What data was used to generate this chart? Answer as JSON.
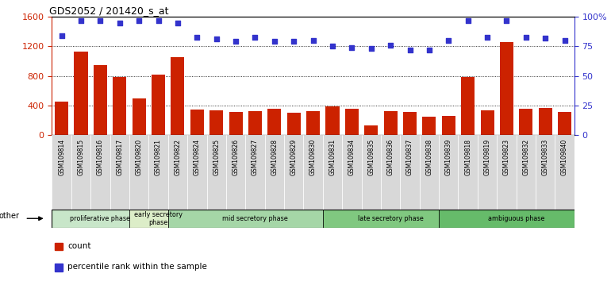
{
  "title": "GDS2052 / 201420_s_at",
  "samples": [
    "GSM109814",
    "GSM109815",
    "GSM109816",
    "GSM109817",
    "GSM109820",
    "GSM109821",
    "GSM109822",
    "GSM109824",
    "GSM109825",
    "GSM109826",
    "GSM109827",
    "GSM109828",
    "GSM109829",
    "GSM109830",
    "GSM109831",
    "GSM109834",
    "GSM109835",
    "GSM109836",
    "GSM109837",
    "GSM109838",
    "GSM109839",
    "GSM109818",
    "GSM109819",
    "GSM109823",
    "GSM109832",
    "GSM109833",
    "GSM109840"
  ],
  "counts": [
    450,
    1130,
    950,
    790,
    490,
    820,
    1050,
    340,
    330,
    310,
    320,
    350,
    300,
    320,
    390,
    350,
    130,
    320,
    310,
    250,
    260,
    790,
    330,
    1260,
    350,
    360,
    310
  ],
  "percentiles": [
    84,
    97,
    97,
    95,
    97,
    97,
    95,
    83,
    81,
    79,
    83,
    79,
    79,
    80,
    75,
    74,
    73,
    76,
    72,
    72,
    80,
    97,
    83,
    97,
    83,
    82,
    80
  ],
  "phases": [
    {
      "label": "proliferative phase",
      "start": 0,
      "end": 4,
      "color": "#c8e6c9"
    },
    {
      "label": "early secretory\nphase",
      "start": 4,
      "end": 6,
      "color": "#dcedc8"
    },
    {
      "label": "mid secretory phase",
      "start": 6,
      "end": 14,
      "color": "#a5d6a7"
    },
    {
      "label": "late secretory phase",
      "start": 14,
      "end": 20,
      "color": "#80c880"
    },
    {
      "label": "ambiguous phase",
      "start": 20,
      "end": 27,
      "color": "#66bb6a"
    }
  ],
  "bar_color": "#cc2200",
  "dot_color": "#3333cc",
  "left_ylim": [
    0,
    1600
  ],
  "right_ylim": [
    0,
    100
  ],
  "left_yticks": [
    0,
    400,
    800,
    1200,
    1600
  ],
  "right_yticks": [
    0,
    25,
    50,
    75,
    100
  ],
  "right_yticklabels": [
    "0",
    "25",
    "50",
    "75",
    "100%"
  ],
  "tick_label_bg": "#d8d8d8",
  "other_label": "other",
  "legend_count_label": "count",
  "legend_percentile_label": "percentile rank within the sample"
}
